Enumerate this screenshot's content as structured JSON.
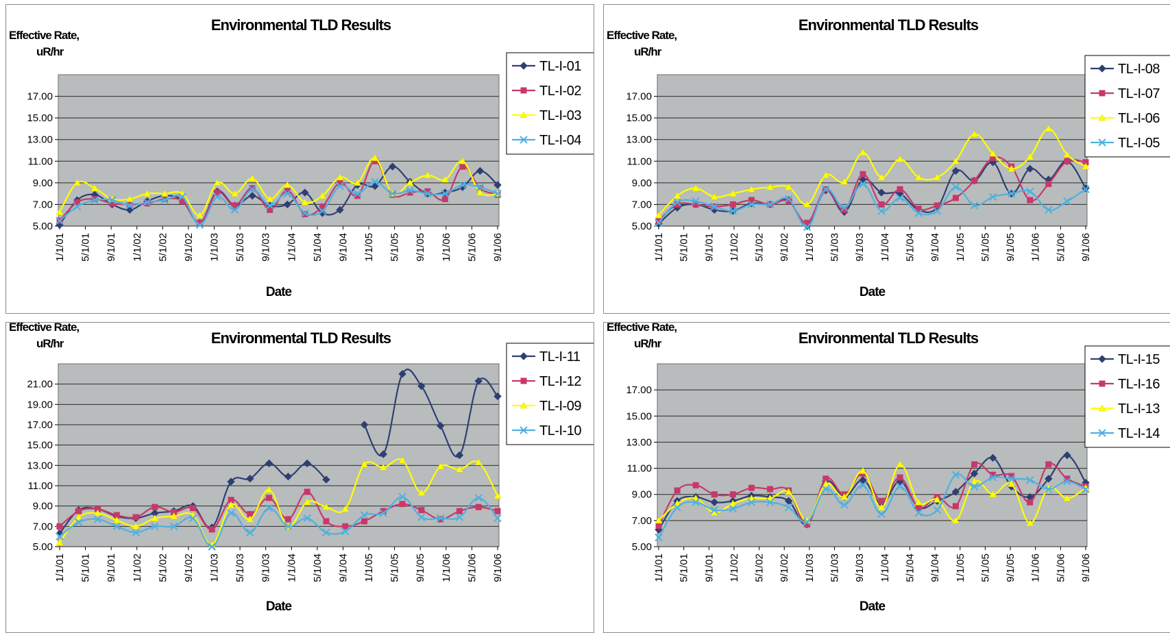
{
  "chart_data": [
    {
      "type": "line",
      "title": "Environmental TLD Results",
      "ylabel": "Effective Rate, uR/hr",
      "xlabel": "Date",
      "ylim": [
        5,
        19
      ],
      "yticks": [
        "5.00",
        "7.00",
        "9.00",
        "11.00",
        "13.00",
        "15.00",
        "17.00"
      ],
      "xticks": [
        "1/1/01",
        "5/1/01",
        "9/1/01",
        "1/1/02",
        "5/1/02",
        "9/1/02",
        "1/1/03",
        "5/1/03",
        "9/1/03",
        "1/1/04",
        "5/1/04",
        "9/1/04",
        "1/1/05",
        "5/1/05",
        "9/1/05",
        "1/1/06",
        "5/1/06",
        "9/1/06"
      ],
      "grid": true,
      "legend": "right",
      "series": [
        {
          "name": "TL-I-01",
          "color": "#2f3f73",
          "marker": "diamond",
          "values": [
            5.1,
            7.4,
            7.9,
            7.0,
            6.5,
            7.3,
            7.8,
            7.4,
            5.3,
            8.2,
            6.9,
            7.8,
            6.9,
            7.0,
            8.1,
            6.2,
            6.5,
            8.8,
            8.7,
            10.5,
            9.1,
            8.0,
            8.1,
            8.6,
            10.1,
            8.8
          ]
        },
        {
          "name": "TL-I-02",
          "color": "#c8386a",
          "marker": "square",
          "values": [
            5.5,
            7.2,
            7.5,
            7.1,
            7.0,
            7.1,
            7.5,
            7.3,
            5.3,
            8.1,
            6.9,
            8.5,
            6.5,
            8.3,
            6.1,
            6.8,
            9.0,
            7.8,
            11.0,
            7.9,
            8.1,
            8.2,
            7.5,
            10.5,
            8.5,
            7.9
          ]
        },
        {
          "name": "TL-I-03",
          "color": "#ffff00",
          "marker": "triangle",
          "values": [
            6.3,
            9.0,
            8.5,
            7.5,
            7.5,
            8.0,
            8.0,
            8.0,
            6.0,
            9.0,
            8.0,
            9.4,
            7.5,
            8.8,
            7.2,
            7.8,
            9.5,
            9.0,
            11.3,
            8.0,
            9.0,
            9.7,
            9.3,
            11.0,
            8.1,
            8.0
          ]
        },
        {
          "name": "TL-I-04",
          "color": "#4fb0e0",
          "marker": "x",
          "values": [
            5.5,
            6.8,
            7.4,
            7.4,
            6.9,
            7.2,
            7.4,
            7.7,
            5.1,
            7.7,
            6.5,
            8.4,
            6.9,
            8.0,
            6.2,
            6.4,
            8.7,
            8.0,
            9.1,
            8.0,
            8.3,
            8.0,
            8.0,
            8.8,
            8.6,
            8.0
          ]
        }
      ]
    },
    {
      "type": "line",
      "title": "Environmental TLD Results",
      "ylabel": "Effective Rate, uR/hr",
      "xlabel": "Date",
      "ylim": [
        5,
        19
      ],
      "yticks": [
        "5.00",
        "7.00",
        "9.00",
        "11.00",
        "13.00",
        "15.00",
        "17.00"
      ],
      "xticks": [
        "1/1/01",
        "5/1/01",
        "9/1/01",
        "1/1/02",
        "5/1/02",
        "9/1/02",
        "1/1/03",
        "5/1/03",
        "9/1/03",
        "1/1/04",
        "5/1/04",
        "9/1/04",
        "1/1/05",
        "5/1/05",
        "9/1/05",
        "1/1/06",
        "5/1/06",
        "9/1/06"
      ],
      "grid": true,
      "legend": "right",
      "series": [
        {
          "name": "TL-I-08",
          "color": "#2f3f73",
          "marker": "diamond",
          "values": [
            5.2,
            6.7,
            7.0,
            6.5,
            6.4,
            7.1,
            7.0,
            7.4,
            5.0,
            8.3,
            6.3,
            9.3,
            8.1,
            8.0,
            6.5,
            6.7,
            10.1,
            9.2,
            10.9,
            8.0,
            10.3,
            9.3,
            11.0,
            8.5
          ]
        },
        {
          "name": "TL-I-07",
          "color": "#c8386a",
          "marker": "square",
          "values": [
            5.5,
            7.0,
            7.0,
            6.8,
            7.0,
            7.4,
            7.0,
            7.3,
            5.3,
            8.4,
            6.5,
            9.8,
            7.0,
            8.4,
            6.6,
            6.9,
            7.6,
            9.2,
            11.3,
            10.5,
            7.4,
            8.9,
            11.0,
            10.9
          ]
        },
        {
          "name": "TL-I-06",
          "color": "#ffff00",
          "marker": "triangle",
          "values": [
            6.0,
            7.8,
            8.5,
            7.7,
            8.0,
            8.4,
            8.6,
            8.6,
            7.0,
            9.7,
            9.1,
            11.8,
            9.5,
            11.2,
            9.5,
            9.5,
            11.0,
            13.5,
            11.7,
            10.3,
            11.4,
            14.0,
            11.6,
            10.5
          ]
        },
        {
          "name": "TL-I-05",
          "color": "#4fb0e0",
          "marker": "x",
          "values": [
            5.3,
            7.2,
            7.3,
            6.8,
            6.4,
            7.0,
            7.0,
            7.5,
            4.9,
            8.4,
            6.7,
            8.9,
            6.4,
            7.6,
            6.2,
            6.4,
            8.6,
            6.9,
            7.7,
            8.0,
            8.2,
            6.5,
            7.3,
            8.4
          ]
        }
      ]
    },
    {
      "type": "line",
      "title": "Environmental TLD Results",
      "ylabel": "Effective Rate, uR/hr",
      "xlabel": "Date",
      "ylim": [
        5,
        23
      ],
      "yticks": [
        "5.00",
        "7.00",
        "9.00",
        "11.00",
        "13.00",
        "15.00",
        "17.00",
        "19.00",
        "21.00"
      ],
      "xticks": [
        "1/1/01",
        "5/1/01",
        "9/1/01",
        "1/1/02",
        "5/1/02",
        "9/1/02",
        "1/1/03",
        "5/1/03",
        "9/1/03",
        "1/1/04",
        "5/1/04",
        "9/1/04",
        "1/1/05",
        "5/1/05",
        "9/1/05",
        "1/1/06",
        "5/1/06",
        "9/1/06"
      ],
      "grid": true,
      "legend": "right",
      "series": [
        {
          "name": "TL-I-11",
          "color": "#2f3f73",
          "marker": "diamond",
          "values": [
            6.3,
            8.6,
            8.7,
            8.0,
            7.8,
            8.3,
            8.5,
            9.0,
            6.9,
            11.4,
            11.7,
            13.2,
            11.9,
            13.2,
            11.6,
            null,
            17.0,
            14.1,
            22.0,
            20.8,
            16.9,
            14.0,
            21.3,
            19.8
          ]
        },
        {
          "name": "TL-I-12",
          "color": "#c8386a",
          "marker": "square",
          "values": [
            7.0,
            8.5,
            8.7,
            8.1,
            7.9,
            8.9,
            8.4,
            8.8,
            6.7,
            9.6,
            8.2,
            9.8,
            7.7,
            10.4,
            7.5,
            7.0,
            7.5,
            8.5,
            9.2,
            8.6,
            7.7,
            8.5,
            8.9,
            8.5
          ]
        },
        {
          "name": "TL-I-09",
          "color": "#ffff00",
          "marker": "triangle",
          "values": [
            5.4,
            7.9,
            8.3,
            7.6,
            7.0,
            7.8,
            8.0,
            8.1,
            5.2,
            9.1,
            7.7,
            10.6,
            7.0,
            9.4,
            8.9,
            8.7,
            13.1,
            12.8,
            13.5,
            10.3,
            12.9,
            12.6,
            13.3,
            10.0
          ]
        },
        {
          "name": "TL-I-10",
          "color": "#4fb0e0",
          "marker": "x",
          "values": [
            6.0,
            7.4,
            7.7,
            7.0,
            6.4,
            7.0,
            7.0,
            7.8,
            5.0,
            8.3,
            6.4,
            8.8,
            7.0,
            7.8,
            6.4,
            6.5,
            8.1,
            8.3,
            9.9,
            7.9,
            7.8,
            7.9,
            9.8,
            7.8
          ]
        }
      ]
    },
    {
      "type": "line",
      "title": "Environmental TLD Results",
      "ylabel": "Effective Rate, uR/hr",
      "xlabel": "Date",
      "ylim": [
        5,
        19
      ],
      "yticks": [
        "5.00",
        "7.00",
        "9.00",
        "11.00",
        "13.00",
        "15.00",
        "17.00"
      ],
      "xticks": [
        "1/1/01",
        "5/1/01",
        "9/1/01",
        "1/1/02",
        "5/1/02",
        "9/1/02",
        "1/1/03",
        "5/1/03",
        "9/1/03",
        "1/1/04",
        "5/1/04",
        "9/1/04",
        "1/1/05",
        "5/1/05",
        "9/1/05",
        "1/1/06",
        "5/1/06",
        "9/1/06"
      ],
      "grid": true,
      "legend": "right",
      "series": [
        {
          "name": "TL-I-15",
          "color": "#2f3f73",
          "marker": "diamond",
          "values": [
            6.3,
            8.5,
            8.8,
            8.4,
            8.5,
            8.9,
            8.8,
            8.5,
            6.7,
            10.0,
            8.8,
            10.1,
            8.3,
            10.0,
            8.0,
            8.5,
            9.2,
            10.6,
            11.8,
            9.6,
            8.8,
            10.2,
            12.0,
            9.9
          ]
        },
        {
          "name": "TL-I-16",
          "color": "#c8386a",
          "marker": "square",
          "values": [
            6.6,
            9.3,
            9.7,
            9.0,
            9.0,
            9.5,
            9.4,
            9.3,
            6.7,
            10.2,
            9.0,
            10.6,
            8.5,
            10.3,
            8.0,
            8.8,
            8.1,
            11.3,
            10.5,
            10.4,
            8.4,
            11.3,
            10.2,
            9.6
          ]
        },
        {
          "name": "TL-I-13",
          "color": "#ffff00",
          "marker": "triangle",
          "values": [
            7.0,
            8.3,
            8.7,
            7.6,
            8.3,
            8.7,
            8.7,
            9.2,
            7.0,
            9.8,
            8.8,
            10.8,
            8.0,
            11.3,
            8.4,
            8.6,
            7.0,
            10.0,
            9.0,
            9.8,
            6.8,
            9.5,
            8.7,
            9.5
          ]
        },
        {
          "name": "TL-I-14",
          "color": "#4fb0e0",
          "marker": "x",
          "values": [
            5.7,
            8.0,
            8.4,
            7.8,
            7.9,
            8.4,
            8.4,
            8.0,
            6.9,
            9.4,
            8.2,
            9.7,
            7.5,
            9.6,
            7.6,
            7.8,
            10.5,
            9.6,
            10.3,
            10.2,
            10.1,
            9.4,
            10.0,
            9.4
          ]
        }
      ]
    }
  ]
}
